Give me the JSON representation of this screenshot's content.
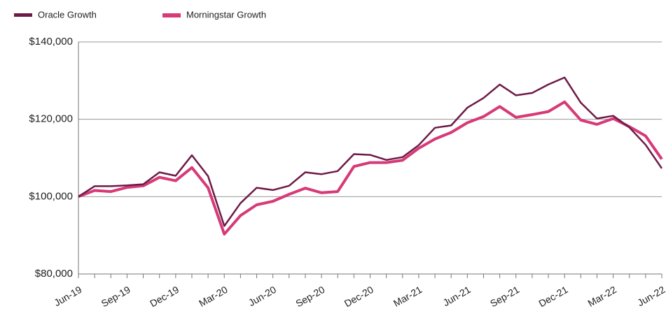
{
  "chart_data": {
    "type": "line",
    "categories": [
      "Jun-19",
      null,
      null,
      "Sep-19",
      null,
      null,
      "Dec-19",
      null,
      null,
      "Mar-20",
      null,
      null,
      "Jun-20",
      null,
      null,
      "Sep-20",
      null,
      null,
      "Dec-20",
      null,
      null,
      "Mar-21",
      null,
      null,
      "Jun-21",
      null,
      null,
      "Sep-21",
      null,
      null,
      "Dec-21",
      null,
      null,
      "Mar-22",
      null,
      null,
      "Jun-22"
    ],
    "series": [
      {
        "name": "Oracle Growth",
        "color": "#6d1a47",
        "values": [
          100000,
          102700,
          102700,
          102900,
          103200,
          106300,
          105400,
          110700,
          105300,
          92400,
          98300,
          102300,
          101700,
          102800,
          106300,
          105800,
          106600,
          111000,
          110800,
          109500,
          110200,
          113300,
          117800,
          118400,
          123000,
          125500,
          129000,
          126200,
          126800,
          129000,
          130800,
          124300,
          120200,
          120900,
          117900,
          113400,
          107300
        ]
      },
      {
        "name": "Morningstar Growth",
        "color": "#d63a77",
        "values": [
          100000,
          101600,
          101300,
          102400,
          102800,
          105000,
          104100,
          107500,
          102300,
          90300,
          95100,
          97900,
          98800,
          100600,
          102200,
          101000,
          101300,
          107800,
          108800,
          108800,
          109400,
          112500,
          114900,
          116600,
          119100,
          120700,
          123300,
          120500,
          121200,
          122000,
          124500,
          119800,
          118700,
          120200,
          118100,
          115700,
          109700
        ]
      }
    ],
    "ylim": [
      80000,
      140000
    ],
    "yticks": [
      {
        "value": 80000,
        "label": "$80,000"
      },
      {
        "value": 100000,
        "label": "$100,000"
      },
      {
        "value": 120000,
        "label": "$120,000"
      },
      {
        "value": 140000,
        "label": "$140,000"
      }
    ],
    "grid": true,
    "legend": "top-left"
  }
}
